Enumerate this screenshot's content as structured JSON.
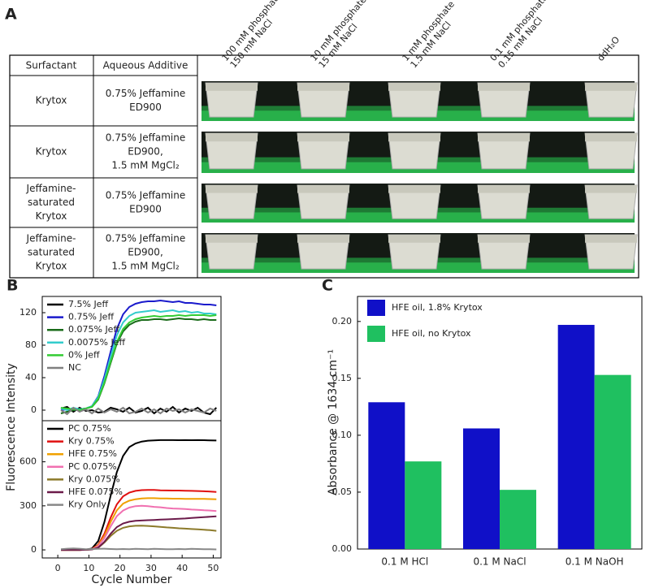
{
  "table": {
    "label": "A",
    "header": [
      "Surfactant",
      "Aqueous Additive"
    ],
    "columns": [
      [
        "100 mM phosphate",
        "150 mM NaCl"
      ],
      [
        "10 mM phosphate",
        "15 mM NaCl"
      ],
      [
        "1 mM phosphate",
        "1.5 mM NaCl"
      ],
      [
        "0.1 mM phosphate",
        "0.15 mM NaCl"
      ],
      [
        "ddH₂O"
      ]
    ],
    "rows": [
      [
        [
          "Krytox"
        ],
        [
          "0.75% Jeffamine",
          "ED900"
        ]
      ],
      [
        [
          "Krytox"
        ],
        [
          "0.75% Jeffamine",
          "ED900,",
          "1.5 mM MgCl₂"
        ]
      ],
      [
        [
          "Jeffamine-",
          "saturated",
          "Krytox"
        ],
        [
          "0.75% Jeffamine",
          "ED900"
        ]
      ],
      [
        [
          "Jeffamine-",
          "saturated",
          "Krytox"
        ],
        [
          "0.75% Jeffamine",
          "ED900,",
          "1.5 mM MgCl₂"
        ]
      ]
    ]
  },
  "chart_data": [
    {
      "type": "line",
      "label": "B",
      "ylabel": "Fluorescence Intensity",
      "x": [
        1,
        3,
        5,
        7,
        9,
        11,
        13,
        15,
        17,
        19,
        21,
        23,
        25,
        27,
        29,
        31,
        33,
        35,
        37,
        39,
        41,
        43,
        45,
        47,
        49,
        51
      ],
      "xlim": [
        -5,
        52.5
      ],
      "ylim": [
        -13,
        140
      ],
      "yticks": [
        0,
        40,
        80,
        120
      ],
      "legend": "upper left",
      "series": [
        {
          "name": "7.5% Jeff",
          "color": "#000000",
          "values": [
            2,
            4,
            -2,
            3,
            -1,
            0,
            -3,
            -2,
            3,
            1,
            -2,
            3,
            -3,
            -1,
            3,
            -4,
            2,
            -2,
            4,
            -3,
            2,
            -1,
            3,
            -3,
            -5,
            3
          ]
        },
        {
          "name": "0.75% Jeff",
          "color": "#1a1acc",
          "values": [
            0,
            1,
            0,
            1,
            2,
            5,
            17,
            42,
            72,
            100,
            118,
            127,
            131,
            133,
            134,
            134,
            135,
            134,
            133,
            134,
            132,
            132,
            131,
            130,
            130,
            129
          ]
        },
        {
          "name": "0.075% Jeff",
          "color": "#1a6b1a",
          "values": [
            -4,
            -2,
            0,
            1,
            2,
            4,
            13,
            33,
            58,
            82,
            97,
            105,
            109,
            111,
            111,
            112,
            112,
            111,
            112,
            113,
            112,
            112,
            111,
            112,
            111,
            111
          ]
        },
        {
          "name": "0.0075% Jeff",
          "color": "#33cccc",
          "values": [
            2,
            0,
            3,
            1,
            2,
            5,
            16,
            38,
            66,
            92,
            108,
            116,
            120,
            121,
            122,
            123,
            121,
            122,
            123,
            121,
            122,
            120,
            121,
            119,
            119,
            118
          ]
        },
        {
          "name": "0% Jeff",
          "color": "#33cc33",
          "values": [
            3,
            2,
            1,
            0,
            2,
            4,
            14,
            34,
            60,
            84,
            100,
            108,
            112,
            114,
            115,
            116,
            115,
            116,
            116,
            117,
            116,
            117,
            117,
            117,
            116,
            117
          ]
        },
        {
          "name": "NC",
          "color": "#808080",
          "values": [
            0,
            -5,
            3,
            -2,
            1,
            -4,
            2,
            -3,
            1,
            -2,
            3,
            -4,
            -2,
            2,
            -3,
            1,
            -4,
            2,
            -1,
            1,
            -3,
            1,
            -1,
            -3,
            2,
            -1
          ]
        }
      ]
    },
    {
      "type": "line",
      "xlabel": "Cycle Number",
      "x": [
        1,
        3,
        5,
        7,
        9,
        11,
        13,
        15,
        17,
        19,
        21,
        23,
        25,
        27,
        29,
        31,
        33,
        35,
        37,
        39,
        41,
        43,
        45,
        47,
        49,
        51
      ],
      "xlim": [
        -5,
        52.5
      ],
      "xticks": [
        0,
        10,
        20,
        30,
        40,
        50
      ],
      "ylim": [
        -55,
        880
      ],
      "yticks": [
        0,
        300,
        600
      ],
      "legend": "upper left",
      "series": [
        {
          "name": "PC 0.75%",
          "color": "#000000",
          "values": [
            0,
            0,
            0,
            0,
            2,
            10,
            60,
            190,
            370,
            530,
            640,
            700,
            725,
            738,
            744,
            746,
            748,
            748,
            748,
            747,
            748,
            747,
            748,
            747,
            746,
            745
          ]
        },
        {
          "name": "Kry 0.75%",
          "color": "#e01010",
          "values": [
            0,
            0,
            0,
            0,
            1,
            6,
            35,
            110,
            220,
            310,
            365,
            390,
            402,
            407,
            408,
            408,
            406,
            405,
            404,
            404,
            403,
            402,
            401,
            399,
            397,
            395
          ]
        },
        {
          "name": "HFE 0.75%",
          "color": "#f0a000",
          "values": [
            0,
            0,
            0,
            0,
            1,
            5,
            30,
            95,
            190,
            270,
            315,
            335,
            345,
            350,
            352,
            352,
            350,
            350,
            349,
            349,
            348,
            348,
            347,
            347,
            346,
            345
          ]
        },
        {
          "name": "PC 0.075%",
          "color": "#f070b0",
          "values": [
            0,
            0,
            0,
            0,
            1,
            4,
            25,
            80,
            160,
            230,
            268,
            288,
            298,
            300,
            298,
            293,
            290,
            285,
            282,
            280,
            278,
            275,
            273,
            270,
            268,
            265
          ]
        },
        {
          "name": "Kry 0.075%",
          "color": "#8c7a2a",
          "values": [
            0,
            0,
            0,
            0,
            1,
            3,
            15,
            50,
            95,
            130,
            150,
            160,
            164,
            165,
            163,
            160,
            157,
            153,
            150,
            147,
            145,
            142,
            140,
            137,
            134,
            130
          ]
        },
        {
          "name": "HFE 0.075%",
          "color": "#6b1a4a",
          "values": [
            0,
            0,
            0,
            0,
            1,
            3,
            15,
            55,
            110,
            155,
            180,
            192,
            198,
            200,
            202,
            204,
            206,
            208,
            210,
            212,
            214,
            217,
            220,
            223,
            226,
            229
          ]
        },
        {
          "name": "Kry Only",
          "color": "#888888",
          "values": [
            5,
            8,
            10,
            8,
            5,
            6,
            7,
            8,
            6,
            4,
            6,
            5,
            7,
            6,
            5,
            7,
            6,
            5,
            4,
            6,
            5,
            7,
            6,
            5,
            4,
            3
          ]
        }
      ]
    },
    {
      "type": "bar",
      "label": "C",
      "ylabel": "Absorbance @ 1634 cm⁻¹",
      "categories": [
        "0.1 M HCl",
        "0.1 M NaCl",
        "0.1 M NaOH"
      ],
      "ylim": [
        0,
        0.222
      ],
      "yticks": [
        {
          "value": 0,
          "label": "0.00"
        },
        {
          "value": 0.05,
          "label": "0.05"
        },
        {
          "value": 0.1,
          "label": "0.10"
        },
        {
          "value": 0.15,
          "label": "0.15"
        },
        {
          "value": 0.2,
          "label": "0.20"
        }
      ],
      "legend": "upper left",
      "series": [
        {
          "name": "HFE oil, 1.8% Krytox",
          "color": "#1010c8",
          "values": [
            0.129,
            0.106,
            0.197
          ]
        },
        {
          "name": "HFE oil, no Krytox",
          "color": "#1fc060",
          "values": [
            0.077,
            0.052,
            0.153
          ]
        }
      ]
    }
  ]
}
